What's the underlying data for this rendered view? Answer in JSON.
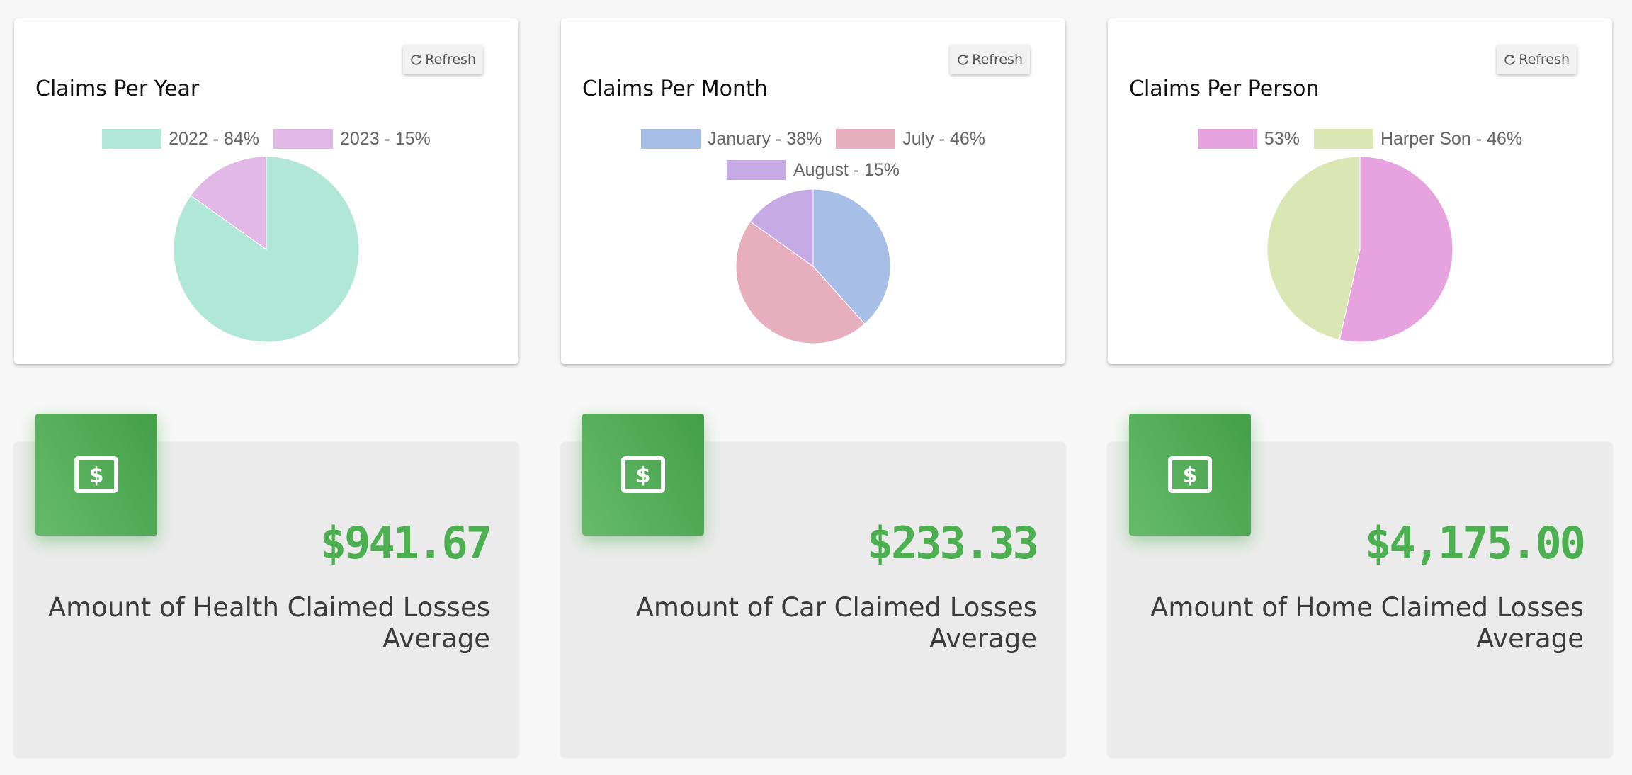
{
  "refresh_label": "Refresh",
  "charts": [
    {
      "title": "Claims Per Year",
      "legend": [
        "2022 - 84%",
        "2023 - 15%"
      ],
      "colors": [
        "#b1e7d7",
        "#e1b8e6"
      ]
    },
    {
      "title": "Claims Per Month",
      "legend": [
        "January - 38%",
        "July - 46%",
        "August - 15%"
      ],
      "colors": [
        "#a7bee7",
        "#e7aebd",
        "#c6aae6"
      ]
    },
    {
      "title": "Claims Per Person",
      "legend": [
        "53%",
        "Harper Son - 46%"
      ],
      "colors": [
        "#e6a3df",
        "#dae6b4"
      ]
    }
  ],
  "chart_data": [
    {
      "type": "pie",
      "title": "Claims Per Year",
      "categories": [
        "2022",
        "2023"
      ],
      "values": [
        84,
        15
      ],
      "legend_position": "top"
    },
    {
      "type": "pie",
      "title": "Claims Per Month",
      "categories": [
        "January",
        "July",
        "August"
      ],
      "values": [
        38,
        46,
        15
      ],
      "legend_position": "top"
    },
    {
      "type": "pie",
      "title": "Claims Per Person",
      "categories": [
        "",
        "Harper Son"
      ],
      "values": [
        53,
        46
      ],
      "legend_position": "top"
    }
  ],
  "stats": [
    {
      "value": "$941.67",
      "label": "Amount of Health Claimed Losses Average",
      "icon": "money-bill-icon"
    },
    {
      "value": "$233.33",
      "label": "Amount of Car Claimed Losses Average",
      "icon": "money-bill-icon"
    },
    {
      "value": "$4,175.00",
      "label": "Amount of Home Claimed Losses Average",
      "icon": "money-bill-icon"
    }
  ],
  "accent_color": "#4caf50"
}
